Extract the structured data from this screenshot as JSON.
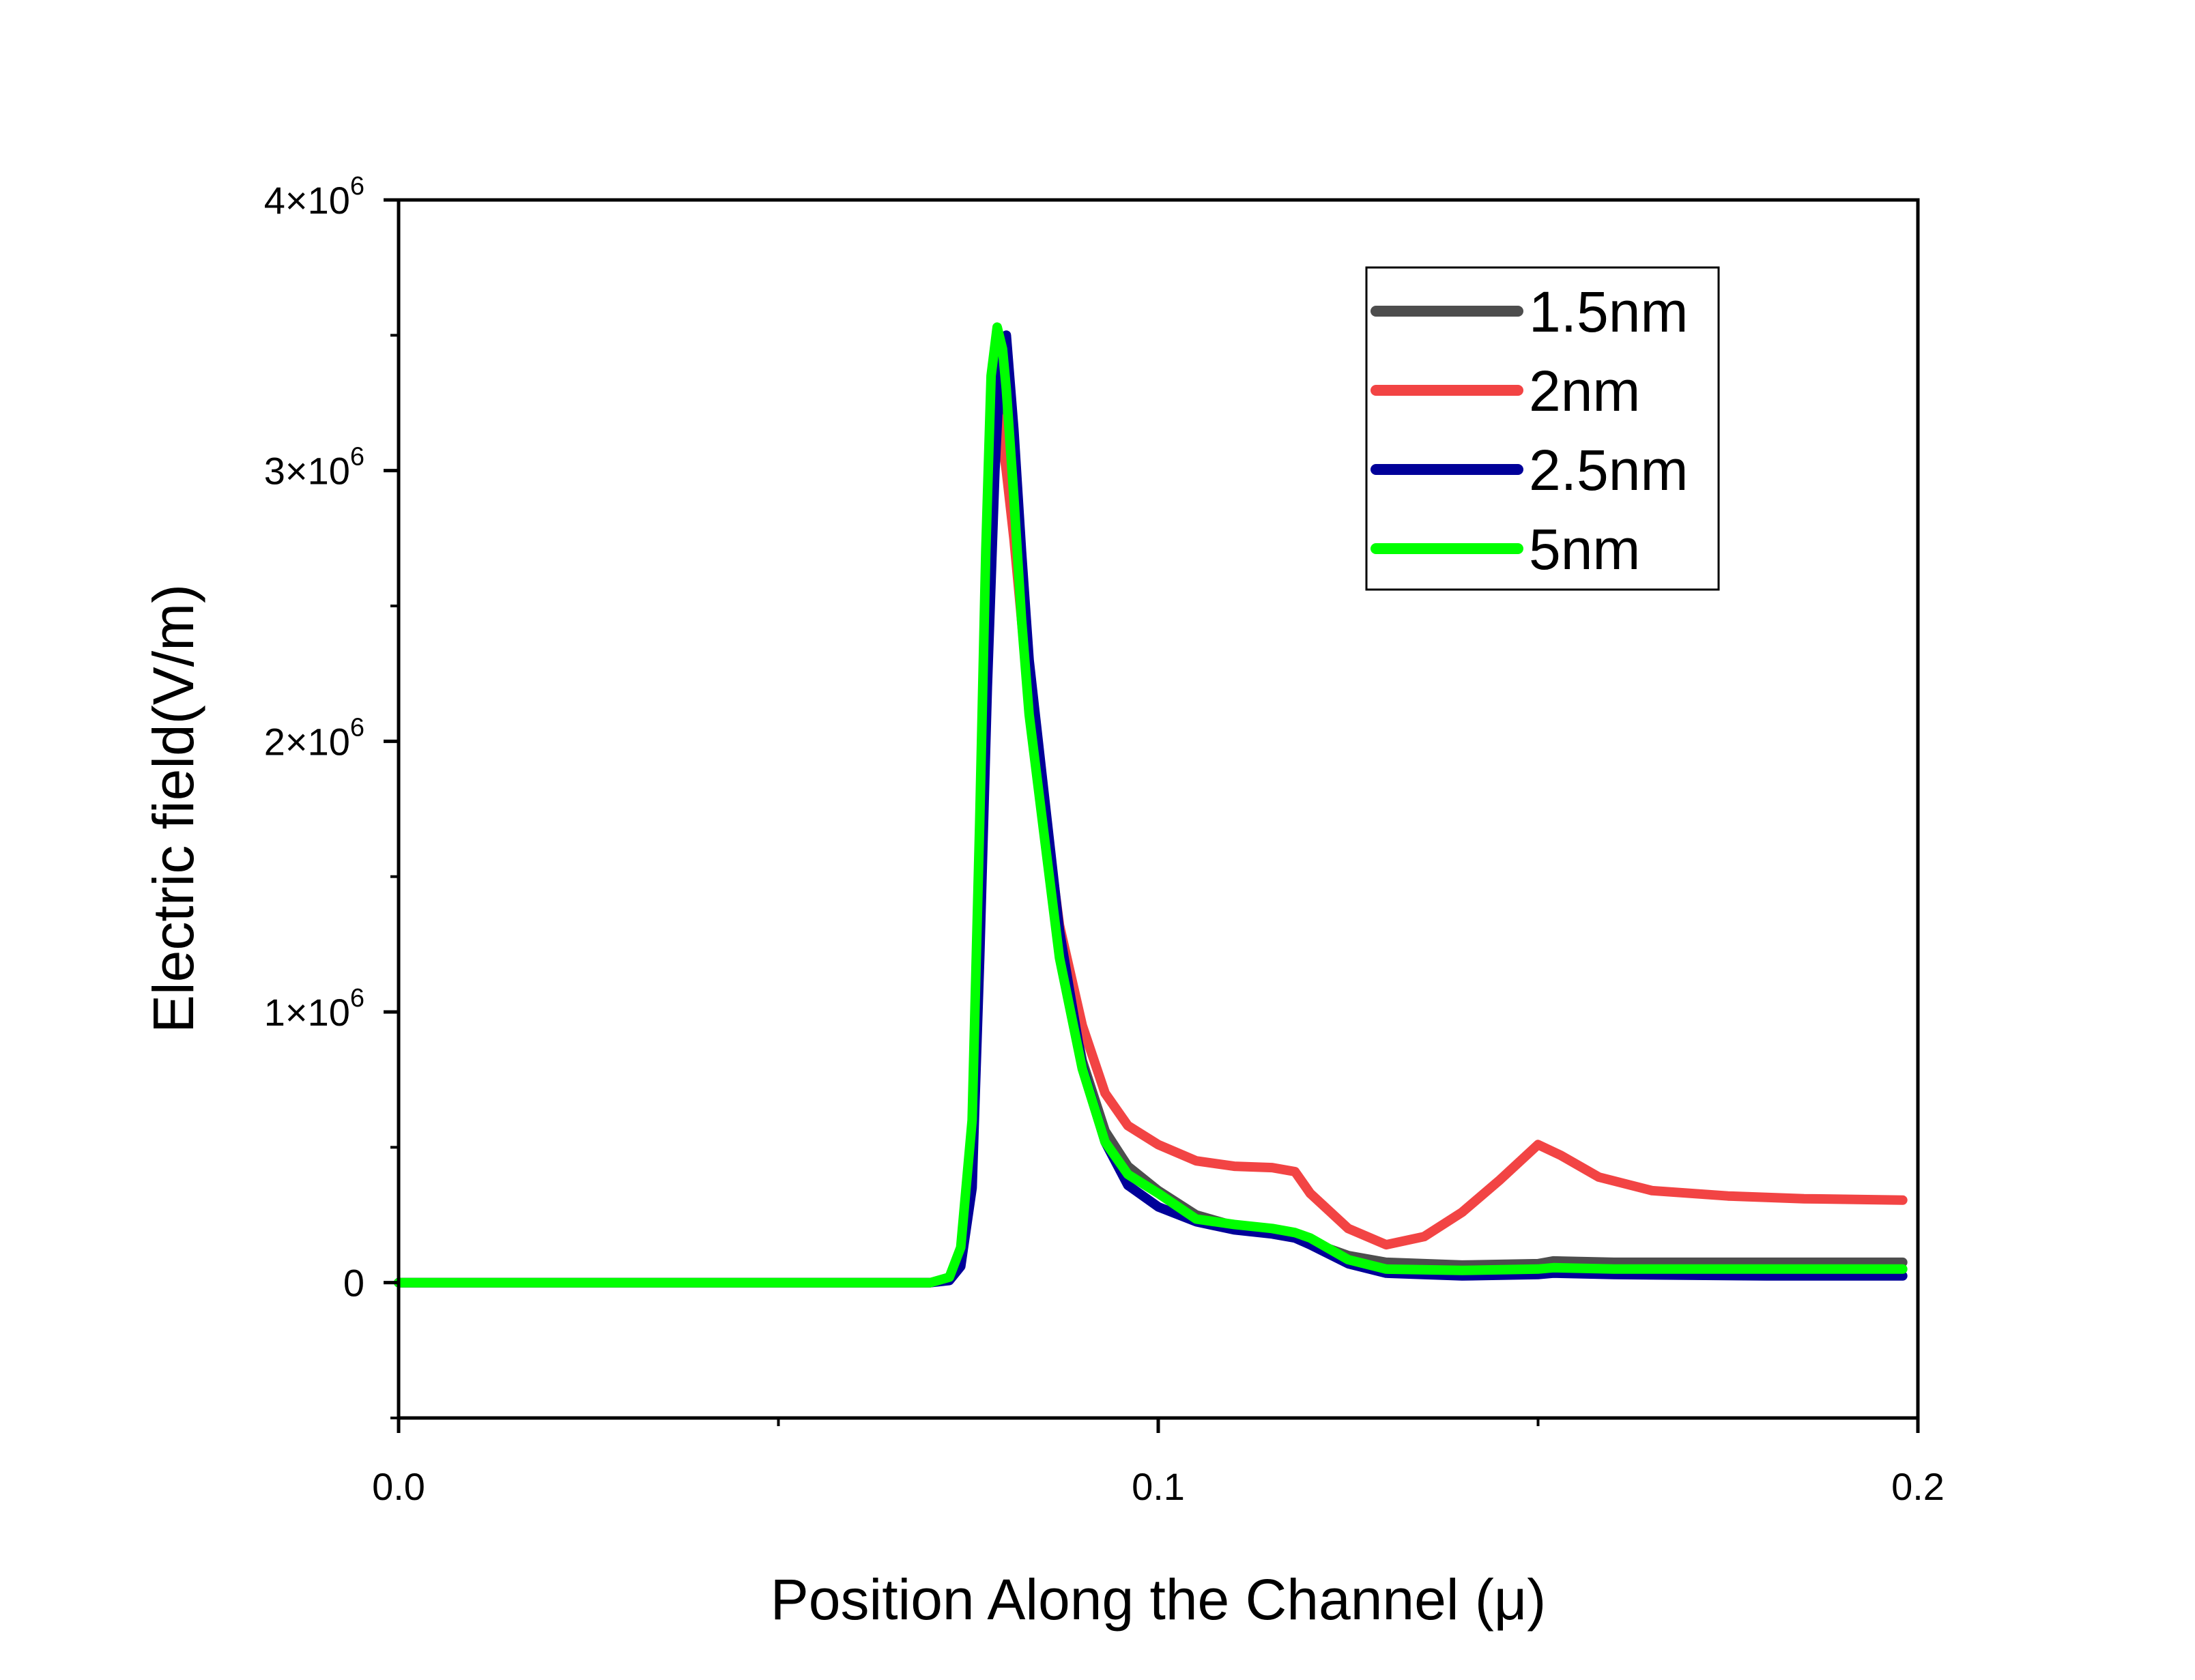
{
  "chart_data": {
    "type": "line",
    "title": "",
    "xlabel": "Position Along the Channel (μ)",
    "ylabel": "Electric field(V/m)",
    "xlim": [
      0,
      0.2
    ],
    "ylim": [
      -500000,
      4000000
    ],
    "x_ticks": [
      {
        "value": 0,
        "label": "0.0"
      },
      {
        "value": 0.1,
        "label": "0.1"
      },
      {
        "value": 0.2,
        "label": "0.2"
      }
    ],
    "x_minor_ticks": [
      0.05,
      0.15
    ],
    "y_ticks": [
      {
        "value": 0,
        "mantissa": "0",
        "exponent": ""
      },
      {
        "value": 1000000,
        "mantissa": "1×10",
        "exponent": "6"
      },
      {
        "value": 2000000,
        "mantissa": "2×10",
        "exponent": "6"
      },
      {
        "value": 3000000,
        "mantissa": "3×10",
        "exponent": "6"
      },
      {
        "value": 4000000,
        "mantissa": "4×10",
        "exponent": "6"
      }
    ],
    "y_minor_ticks": [
      -500000,
      500000,
      1500000,
      2500000,
      3500000
    ],
    "grid": false,
    "legend_position": "top-right",
    "series": [
      {
        "name": "1.5nm",
        "color": "#4d4d4d",
        "points": [
          [
            0,
            0
          ],
          [
            0.07,
            0
          ],
          [
            0.0725,
            15000
          ],
          [
            0.074,
            100000
          ],
          [
            0.0755,
            500000
          ],
          [
            0.0765,
            1500000
          ],
          [
            0.0773,
            2500000
          ],
          [
            0.078,
            3200000
          ],
          [
            0.079,
            3400000
          ],
          [
            0.08,
            3250000
          ],
          [
            0.081,
            2900000
          ],
          [
            0.082,
            2500000
          ],
          [
            0.083,
            2150000
          ],
          [
            0.085,
            1700000
          ],
          [
            0.087,
            1250000
          ],
          [
            0.09,
            820000
          ],
          [
            0.093,
            560000
          ],
          [
            0.096,
            430000
          ],
          [
            0.1,
            340000
          ],
          [
            0.105,
            250000
          ],
          [
            0.11,
            210000
          ],
          [
            0.115,
            190000
          ],
          [
            0.118,
            175000
          ],
          [
            0.12,
            150000
          ],
          [
            0.125,
            100000
          ],
          [
            0.13,
            75000
          ],
          [
            0.14,
            65000
          ],
          [
            0.15,
            70000
          ],
          [
            0.152,
            80000
          ],
          [
            0.16,
            75000
          ],
          [
            0.18,
            75000
          ],
          [
            0.198,
            75000
          ]
        ]
      },
      {
        "name": "2nm",
        "color": "#f24444",
        "points": [
          [
            0,
            0
          ],
          [
            0.07,
            0
          ],
          [
            0.0725,
            12000
          ],
          [
            0.074,
            90000
          ],
          [
            0.0755,
            450000
          ],
          [
            0.0765,
            1400000
          ],
          [
            0.0773,
            2300000
          ],
          [
            0.078,
            3000000
          ],
          [
            0.079,
            3200000
          ],
          [
            0.08,
            3000000
          ],
          [
            0.081,
            2750000
          ],
          [
            0.082,
            2450000
          ],
          [
            0.083,
            2150000
          ],
          [
            0.085,
            1750000
          ],
          [
            0.087,
            1320000
          ],
          [
            0.09,
            950000
          ],
          [
            0.093,
            700000
          ],
          [
            0.096,
            580000
          ],
          [
            0.1,
            510000
          ],
          [
            0.105,
            450000
          ],
          [
            0.11,
            430000
          ],
          [
            0.115,
            425000
          ],
          [
            0.118,
            410000
          ],
          [
            0.12,
            330000
          ],
          [
            0.125,
            200000
          ],
          [
            0.13,
            140000
          ],
          [
            0.135,
            170000
          ],
          [
            0.14,
            260000
          ],
          [
            0.145,
            380000
          ],
          [
            0.15,
            510000
          ],
          [
            0.153,
            470000
          ],
          [
            0.158,
            390000
          ],
          [
            0.165,
            340000
          ],
          [
            0.175,
            320000
          ],
          [
            0.185,
            310000
          ],
          [
            0.198,
            305000
          ]
        ]
      },
      {
        "name": "2.5nm",
        "color": "#000099",
        "points": [
          [
            0,
            0
          ],
          [
            0.07,
            0
          ],
          [
            0.0725,
            8000
          ],
          [
            0.074,
            60000
          ],
          [
            0.0755,
            350000
          ],
          [
            0.0765,
            1200000
          ],
          [
            0.0775,
            2200000
          ],
          [
            0.0785,
            3000000
          ],
          [
            0.0793,
            3450000
          ],
          [
            0.08,
            3500000
          ],
          [
            0.081,
            3150000
          ],
          [
            0.082,
            2700000
          ],
          [
            0.083,
            2300000
          ],
          [
            0.085,
            1800000
          ],
          [
            0.087,
            1300000
          ],
          [
            0.09,
            800000
          ],
          [
            0.093,
            520000
          ],
          [
            0.096,
            360000
          ],
          [
            0.1,
            280000
          ],
          [
            0.105,
            225000
          ],
          [
            0.11,
            195000
          ],
          [
            0.115,
            180000
          ],
          [
            0.118,
            165000
          ],
          [
            0.12,
            140000
          ],
          [
            0.125,
            70000
          ],
          [
            0.13,
            35000
          ],
          [
            0.14,
            25000
          ],
          [
            0.15,
            30000
          ],
          [
            0.152,
            35000
          ],
          [
            0.16,
            30000
          ],
          [
            0.18,
            25000
          ],
          [
            0.198,
            25000
          ]
        ]
      },
      {
        "name": "5nm",
        "color": "#00ff00",
        "points": [
          [
            0,
            0
          ],
          [
            0.07,
            0
          ],
          [
            0.0725,
            20000
          ],
          [
            0.074,
            130000
          ],
          [
            0.0755,
            600000
          ],
          [
            0.0765,
            1700000
          ],
          [
            0.0773,
            2700000
          ],
          [
            0.078,
            3350000
          ],
          [
            0.0788,
            3530000
          ],
          [
            0.0795,
            3450000
          ],
          [
            0.08,
            3300000
          ],
          [
            0.081,
            2900000
          ],
          [
            0.082,
            2450000
          ],
          [
            0.083,
            2100000
          ],
          [
            0.085,
            1650000
          ],
          [
            0.087,
            1200000
          ],
          [
            0.09,
            790000
          ],
          [
            0.093,
            520000
          ],
          [
            0.096,
            400000
          ],
          [
            0.1,
            330000
          ],
          [
            0.105,
            235000
          ],
          [
            0.11,
            215000
          ],
          [
            0.115,
            200000
          ],
          [
            0.118,
            185000
          ],
          [
            0.12,
            165000
          ],
          [
            0.125,
            85000
          ],
          [
            0.13,
            50000
          ],
          [
            0.14,
            45000
          ],
          [
            0.15,
            50000
          ],
          [
            0.152,
            55000
          ],
          [
            0.16,
            50000
          ],
          [
            0.18,
            50000
          ],
          [
            0.198,
            50000
          ]
        ]
      }
    ]
  }
}
